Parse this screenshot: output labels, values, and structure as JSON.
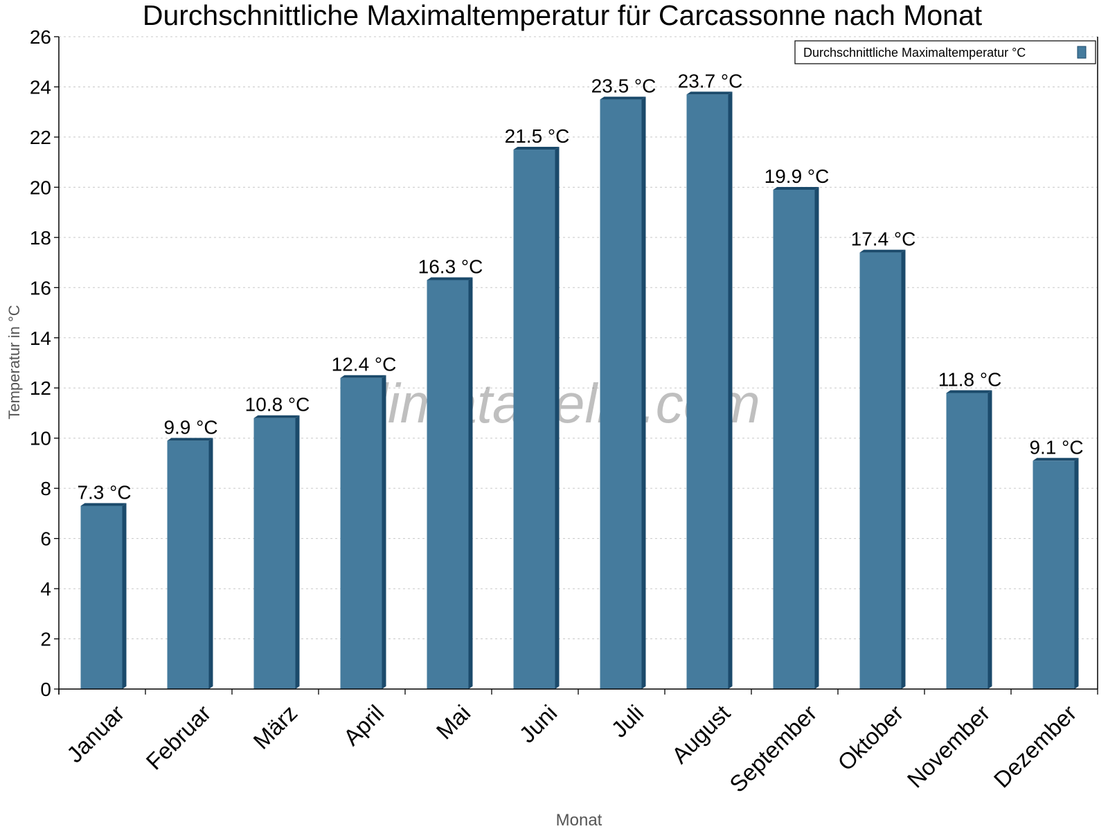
{
  "chart_data": {
    "type": "bar",
    "title": "Durchschnittliche Maximaltemperatur für Carcassonne nach Monat",
    "xlabel": "Monat",
    "ylabel": "Temperatur in °C",
    "ylim": [
      0,
      26
    ],
    "yticks": [
      0,
      2,
      4,
      6,
      8,
      10,
      12,
      14,
      16,
      18,
      20,
      22,
      24,
      26
    ],
    "grid": true,
    "legend_position": "top-right",
    "watermark": "klimatabelle.com",
    "categories": [
      "Januar",
      "Februar",
      "März",
      "April",
      "Mai",
      "Juni",
      "Juli",
      "August",
      "September",
      "Oktober",
      "November",
      "Dezember"
    ],
    "series": [
      {
        "name": "Durchschnittliche Maximaltemperatur °C",
        "values": [
          7.3,
          9.9,
          10.8,
          12.4,
          16.3,
          21.5,
          23.5,
          23.7,
          19.9,
          17.4,
          11.8,
          9.1
        ],
        "labels": [
          "7.3 °C",
          "9.9 °C",
          "10.8 °C",
          "12.4 °C",
          "16.3 °C",
          "21.5 °C",
          "23.5 °C",
          "23.7 °C",
          "19.9 °C",
          "17.4 °C",
          "11.8 °C",
          "9.1 °C"
        ],
        "color": "#457b9d",
        "side_color": "#1b4a6b"
      }
    ]
  }
}
